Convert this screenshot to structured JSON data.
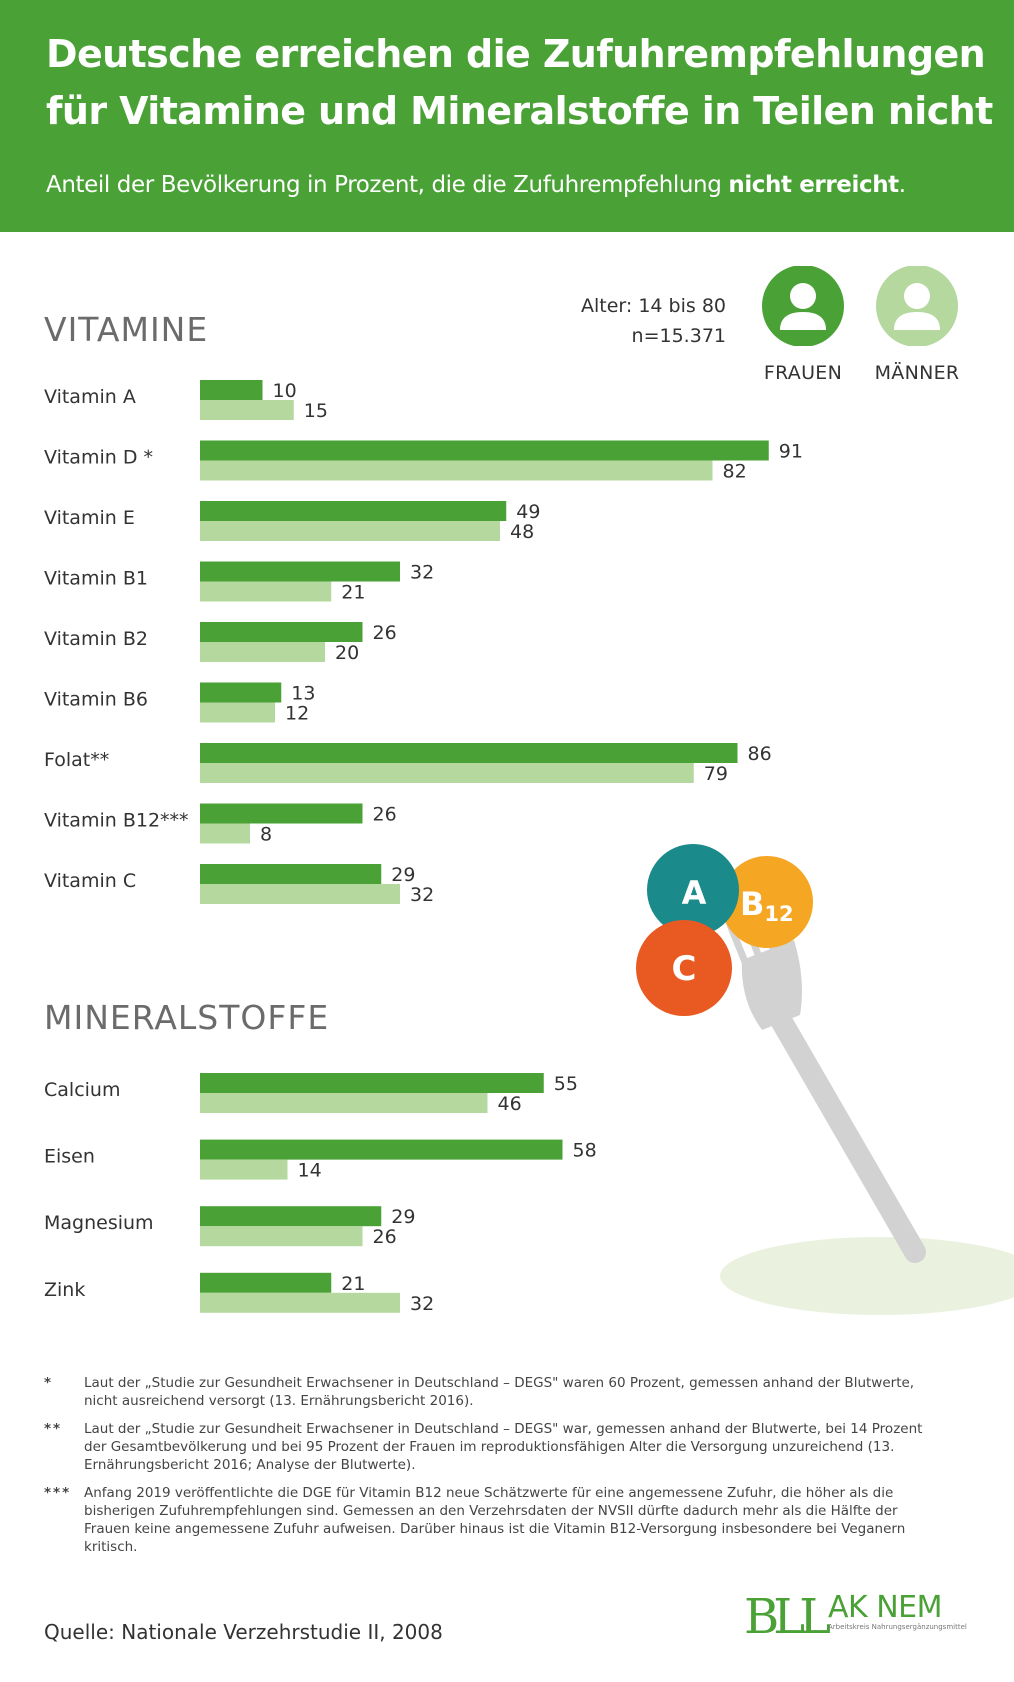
{
  "header": {
    "title": "Deutsche erreichen die Zufuhrempfehlungen für Vitamine und Mineralstoffe in Teilen nicht",
    "subtitle_start": "Anteil der Bevölkerung in Prozent, die die Zufuhrempfehlung ",
    "subtitle_bold": "nicht erreicht",
    "subtitle_end": "."
  },
  "info": {
    "age": "Alter: 14 bis 80",
    "n": "n=15.371"
  },
  "legend": {
    "women": "FRAUEN",
    "men": "MÄNNER"
  },
  "sections": {
    "vitamins": "VITAMINE",
    "minerals": "MINERALSTOFFE"
  },
  "colors": {
    "women": "#4aa136",
    "men": "#b5d89e",
    "header": "#4aa136"
  },
  "decor": {
    "ball_a": "A",
    "ball_b12_main": "B",
    "ball_b12_sub": "12",
    "ball_c": "C"
  },
  "chart_data": [
    {
      "type": "bar",
      "orientation": "horizontal",
      "title": "VITAMINE",
      "categories": [
        "Vitamin A",
        "Vitamin D *",
        "Vitamin E",
        "Vitamin B1",
        "Vitamin B2",
        "Vitamin B6",
        "Folat**",
        "Vitamin B12***",
        "Vitamin C"
      ],
      "series": [
        {
          "name": "FRAUEN",
          "values": [
            10,
            91,
            49,
            32,
            26,
            13,
            86,
            26,
            29
          ]
        },
        {
          "name": "MÄNNER",
          "values": [
            15,
            82,
            48,
            21,
            20,
            12,
            79,
            8,
            32
          ]
        }
      ],
      "unit": "%",
      "xlim": [
        0,
        100
      ]
    },
    {
      "type": "bar",
      "orientation": "horizontal",
      "title": "MINERALSTOFFE",
      "categories": [
        "Calcium",
        "Eisen",
        "Magnesium",
        "Zink"
      ],
      "series": [
        {
          "name": "FRAUEN",
          "values": [
            55,
            58,
            29,
            21
          ]
        },
        {
          "name": "MÄNNER",
          "values": [
            46,
            14,
            26,
            32
          ]
        }
      ],
      "unit": "%",
      "xlim": [
        0,
        100
      ]
    }
  ],
  "footnotes": [
    {
      "mark": "*",
      "text": "Laut der „Studie zur Gesundheit Erwachsener in Deutschland – DEGS\" waren 60 Prozent, gemessen anhand der Blutwerte, nicht ausreichend versorgt (13. Ernährungsbericht 2016)."
    },
    {
      "mark": "**",
      "text": "Laut der „Studie zur Gesundheit Erwachsener in Deutschland – DEGS\" war, gemessen anhand der Blutwerte, bei 14 Prozent der Gesamtbevölkerung und bei 95 Prozent der Frauen im reproduktionsfähigen Alter die Versorgung unzureichend (13. Ernährungsbericht 2016; Analyse der Blutwerte)."
    },
    {
      "mark": "***",
      "text": "Anfang 2019 veröffentlichte die DGE für Vitamin B12 neue Schätzwerte für eine angemessene Zufuhr, die höher als die bisherigen Zufuhrempfehlungen sind. Gemessen an den Verzehrsdaten der NVSII dürfte dadurch mehr als die Hälfte der Frauen keine angemessene Zufuhr aufweisen. Darüber hinaus ist die Vitamin B12-Versorgung insbesondere bei Veganern kritisch."
    }
  ],
  "source": "Quelle: Nationale Verzehrstudie II, 2008",
  "logo": {
    "bll": "BLL",
    "ak_nem": "AK NEM",
    "ak_sub": "Arbeitskreis Nahrungsergänzungsmittel"
  }
}
